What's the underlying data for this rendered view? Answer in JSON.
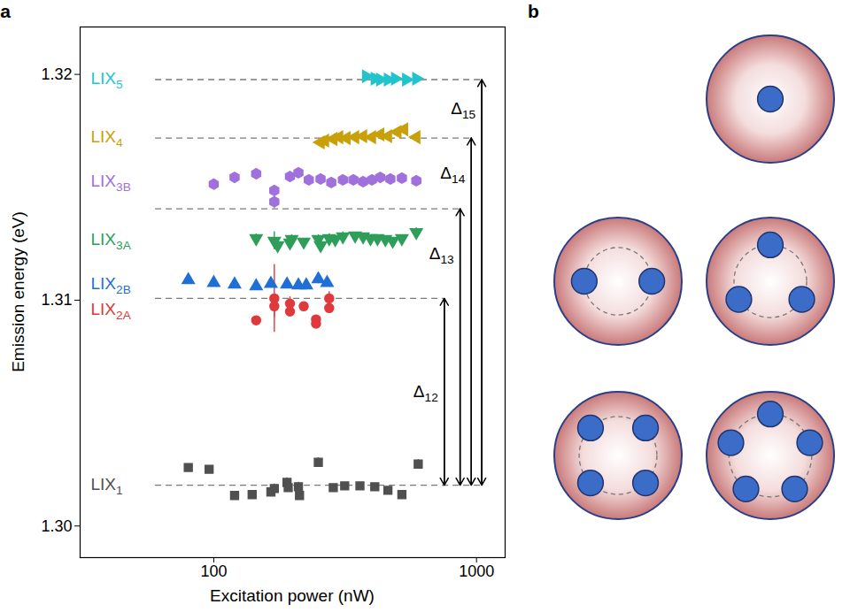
{
  "chart_data": {
    "type": "scatter",
    "panel_label": "a",
    "xlabel": "Excitation power (nW)",
    "ylabel": "Emission energy (eV)",
    "log": "x",
    "grid": false,
    "xlim": [
      31,
      1285
    ],
    "xticks": [
      100,
      1000
    ],
    "ylim": [
      1.2986,
      1.3221
    ],
    "yticks": [
      {
        "value": 1.3,
        "label": "1.30"
      },
      1.31,
      1.32
    ],
    "series": [
      {
        "name": "LIX1",
        "color": "#505050",
        "marker": "square",
        "x": [
          80,
          96,
          120,
          140,
          165,
          170,
          190,
          192,
          210,
          212,
          250,
          285,
          315,
          360,
          410,
          460,
          520,
          600
        ],
        "values": [
          1.30259,
          1.30251,
          1.30135,
          1.30139,
          1.30151,
          1.30166,
          1.30193,
          1.3017,
          1.30174,
          1.30135,
          1.30282,
          1.3017,
          1.30178,
          1.30178,
          1.30174,
          1.30158,
          1.30139,
          1.30274
        ],
        "errors": [
          0.0001,
          0.0001,
          0.0001,
          0.0001,
          0.0001,
          0.0002,
          0.0002,
          0.0001,
          0.0002,
          0.0001,
          0.0002,
          0.0001,
          0.0001,
          0.0001,
          0.0001,
          0.0001,
          0.0001,
          0.0002
        ]
      },
      {
        "name": "LIX2A",
        "color": "#e0393b",
        "marker": "circle",
        "x": [
          145,
          170,
          170,
          195,
          195,
          220,
          245,
          245,
          275,
          275
        ],
        "values": [
          1.30911,
          1.31008,
          1.30973,
          1.30985,
          1.3095,
          1.30973,
          1.30915,
          1.30896,
          1.31008,
          1.30965
        ],
        "errors": [
          0.0001,
          0.0015,
          0.0005,
          0.0003,
          0.0002,
          0.0001,
          0.0001,
          0.0001,
          0.0003,
          0.0002
        ]
      },
      {
        "name": "LIX2B",
        "color": "#1f6fd6",
        "marker": "triangle",
        "x": [
          80,
          100,
          120,
          145,
          165,
          190,
          210,
          225,
          250,
          270
        ],
        "values": [
          1.31089,
          1.31077,
          1.3107,
          1.31062,
          1.31073,
          1.3107,
          1.31066,
          1.31066,
          1.31093,
          1.31077
        ],
        "errors": [
          0.0001,
          0.0001,
          0.0001,
          0.0001,
          0.0001,
          0.0001,
          0.0001,
          0.0002,
          0.0002,
          0.0001
        ]
      },
      {
        "name": "LIX3A",
        "color": "#2e9e5a",
        "marker": "triangle-down",
        "x": [
          145,
          170,
          175,
          195,
          198,
          220,
          250,
          255,
          275,
          290,
          310,
          345,
          370,
          395,
          420,
          450,
          480,
          520,
          590
        ],
        "values": [
          1.31274,
          1.31263,
          1.31243,
          1.31255,
          1.3127,
          1.31259,
          1.3127,
          1.31243,
          1.31274,
          1.3127,
          1.31282,
          1.31286,
          1.31282,
          1.31274,
          1.31274,
          1.3127,
          1.31263,
          1.31274,
          1.31301
        ],
        "errors": [
          0.0002,
          0.0004,
          0.0002,
          0.0002,
          0.0002,
          0.0001,
          0.0002,
          0.0001,
          0.0002,
          0.0001,
          0.0002,
          0.0001,
          0.0001,
          0.0001,
          0.0001,
          0.0001,
          0.0001,
          0.0001,
          0.0002
        ]
      },
      {
        "name": "LIX3B",
        "color": "#a070dd",
        "marker": "hexagon",
        "x": [
          100,
          120,
          145,
          170,
          170,
          195,
          210,
          230,
          255,
          280,
          310,
          340,
          370,
          400,
          430,
          470,
          520,
          590
        ],
        "values": [
          1.31514,
          1.31544,
          1.3156,
          1.31486,
          1.31436,
          1.31548,
          1.31564,
          1.31533,
          1.31537,
          1.31521,
          1.31533,
          1.31533,
          1.31525,
          1.31533,
          1.31544,
          1.31537,
          1.31541,
          1.31529
        ],
        "errors": [
          0.0001,
          0.0001,
          0.0002,
          0.0002,
          0.0003,
          0.0001,
          0.0002,
          0.0001,
          0.0001,
          0.0001,
          0.0001,
          0.0001,
          0.0001,
          0.0001,
          0.0001,
          0.0001,
          0.0001,
          0.0001
        ]
      },
      {
        "name": "LIX4",
        "color": "#c8a00a",
        "marker": "triangle-left",
        "x": [
          255,
          265,
          285,
          300,
          320,
          345,
          370,
          400,
          430,
          460,
          500,
          530,
          590
        ],
        "values": [
          1.31699,
          1.31707,
          1.31714,
          1.31722,
          1.31718,
          1.31722,
          1.31726,
          1.31722,
          1.31734,
          1.31726,
          1.31745,
          1.31757,
          1.31722
        ],
        "errors": [
          0.0001,
          0.0001,
          0.0001,
          0.0001,
          0.0001,
          0.0001,
          0.0001,
          0.0001,
          0.0001,
          0.0001,
          0.0001,
          0.0001,
          0.0001
        ]
      },
      {
        "name": "LIX5",
        "color": "#22c4cc",
        "marker": "triangle-right",
        "x": [
          380,
          410,
          430,
          460,
          490,
          540,
          590
        ],
        "values": [
          1.31992,
          1.31981,
          1.31977,
          1.31977,
          1.31981,
          1.31977,
          1.31981
        ],
        "errors": [
          0.0001,
          0.0002,
          0.0001,
          0.0001,
          0.0001,
          0.0001,
          0.0001
        ]
      }
    ],
    "reference_lines": [
      {
        "y": 1.30181,
        "x": [
          60,
          1047
        ]
      },
      {
        "y": 1.31008,
        "x": [
          60,
          754
        ]
      },
      {
        "y": 1.31405,
        "x": [
          60,
          866
        ]
      },
      {
        "y": 1.31718,
        "x": [
          60,
          955
        ]
      },
      {
        "y": 1.31977,
        "x": [
          60,
          1047
        ]
      }
    ],
    "arrows": [
      {
        "label": "Δ12",
        "x": 754,
        "y": [
          1.30181,
          1.31008
        ]
      },
      {
        "label": "Δ13",
        "x": 866,
        "y": [
          1.30181,
          1.31405
        ]
      },
      {
        "label": "Δ14",
        "x": 955,
        "y": [
          1.30181,
          1.31718
        ]
      },
      {
        "label": "Δ15",
        "x": 1047,
        "y": [
          1.30181,
          1.31977
        ]
      }
    ]
  },
  "diagram": {
    "panel_label": "b",
    "particles": [
      1,
      2,
      3,
      4,
      5
    ]
  }
}
